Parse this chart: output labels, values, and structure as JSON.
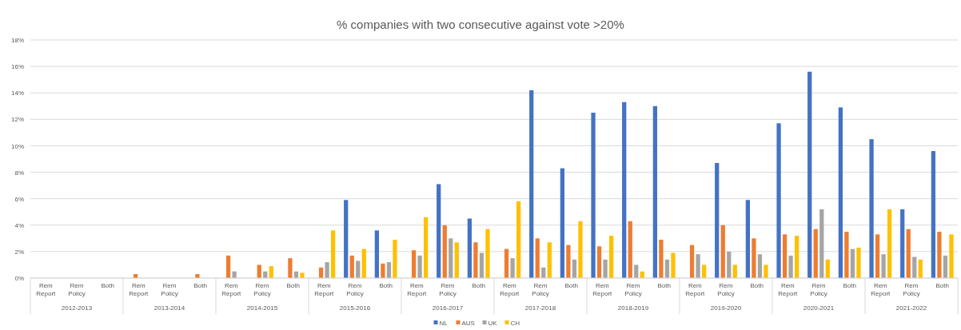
{
  "chart_data": {
    "type": "bar",
    "title": "% companies with two consecutive against vote >20%",
    "categories": [
      "Rem Report",
      "Rem Policy",
      "Both",
      "Rem Report",
      "Rem Policy",
      "Both",
      "Rem Report",
      "Rem Policy",
      "Both",
      "Rem Report",
      "Rem Policy",
      "Both",
      "Rem Report",
      "Rem Policy",
      "Both",
      "Rem Report",
      "Rem Policy",
      "Both",
      "Rem Report",
      "Rem Policy",
      "Both",
      "Rem Report",
      "Rem Policy",
      "Both",
      "Rem Report",
      "Rem Policy",
      "Both",
      "Rem Report",
      "Rem Policy",
      "Both"
    ],
    "annotations": [
      "2012-2013",
      "2013-2014",
      "2014-2015",
      "2015-2016",
      "2016-2017",
      "2017-2018",
      "2018-2019",
      "2019-2020",
      "2020-2021",
      "2021-2022"
    ],
    "series": [
      {
        "name": "NL",
        "color": "#4472c4",
        "values": [
          null,
          null,
          null,
          null,
          null,
          null,
          null,
          null,
          null,
          null,
          5.9,
          3.6,
          null,
          7.1,
          4.5,
          null,
          14.2,
          8.3,
          12.5,
          13.3,
          13.0,
          null,
          8.7,
          5.9,
          11.7,
          15.6,
          12.9,
          10.5,
          5.2,
          9.6
        ]
      },
      {
        "name": "AUS",
        "color": "#ed7d31",
        "values": [
          null,
          null,
          null,
          0.3,
          null,
          0.3,
          1.7,
          1.0,
          1.5,
          0.8,
          1.7,
          1.1,
          2.1,
          4.0,
          2.7,
          2.2,
          3.0,
          2.5,
          2.4,
          4.3,
          2.9,
          2.5,
          4.0,
          3.0,
          3.3,
          3.7,
          3.5,
          3.3,
          3.7,
          3.5
        ]
      },
      {
        "name": "UK",
        "color": "#a5a5a5",
        "values": [
          null,
          null,
          null,
          null,
          null,
          null,
          0.5,
          0.5,
          0.5,
          1.2,
          1.3,
          1.2,
          1.7,
          3.0,
          1.9,
          1.5,
          0.8,
          1.4,
          1.4,
          1.0,
          1.4,
          1.8,
          2.0,
          1.8,
          1.7,
          5.2,
          2.2,
          1.8,
          1.6,
          1.7
        ]
      },
      {
        "name": "CH",
        "color": "#ffc000",
        "values": [
          null,
          null,
          null,
          null,
          null,
          null,
          null,
          0.9,
          0.4,
          3.6,
          2.2,
          2.9,
          4.6,
          2.7,
          3.7,
          5.8,
          2.7,
          4.3,
          3.2,
          0.5,
          1.9,
          1.0,
          1.0,
          1.0,
          3.2,
          1.4,
          2.3,
          5.2,
          1.4,
          3.3
        ]
      }
    ],
    "ylim": [
      0,
      18
    ],
    "yticks": [
      {
        "value": 0,
        "label": "0%"
      },
      {
        "value": 2,
        "label": "2%"
      },
      {
        "value": 4,
        "label": "4%"
      },
      {
        "value": 6,
        "label": "6%"
      },
      {
        "value": 8,
        "label": "8%"
      },
      {
        "value": 10,
        "label": "10%"
      },
      {
        "value": 12,
        "label": "12%"
      },
      {
        "value": 14,
        "label": "14%"
      },
      {
        "value": 16,
        "label": "16%"
      },
      {
        "value": 18,
        "label": "18%"
      }
    ],
    "grid": "y",
    "legend": "bottom"
  }
}
